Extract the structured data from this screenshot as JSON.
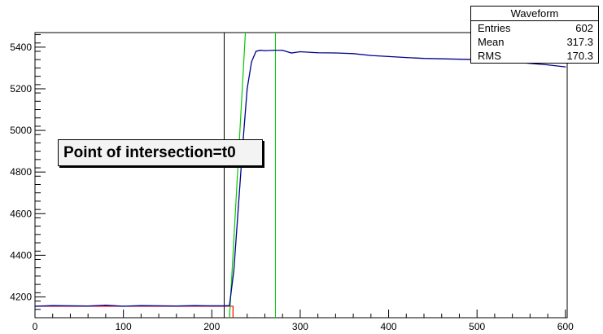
{
  "chart_data": {
    "type": "line",
    "title": "",
    "xlabel": "",
    "ylabel": "",
    "xlim": [
      0,
      602
    ],
    "ylim": [
      4100,
      5470
    ],
    "xticks": [
      0,
      100,
      200,
      300,
      400,
      500,
      600
    ],
    "yticks": [
      4200,
      4400,
      4600,
      4800,
      5000,
      5200,
      5400
    ],
    "grid": false,
    "waveform": {
      "x": [
        0,
        20,
        40,
        60,
        80,
        100,
        120,
        140,
        160,
        180,
        200,
        214,
        220,
        225,
        230,
        235,
        240,
        245,
        250,
        255,
        260,
        270,
        280,
        290,
        300,
        320,
        340,
        360,
        380,
        400,
        420,
        440,
        460,
        480,
        500,
        520,
        540,
        560,
        580,
        600
      ],
      "y": [
        4155,
        4158,
        4157,
        4156,
        4160,
        4155,
        4158,
        4157,
        4156,
        4158,
        4157,
        4157,
        4158,
        4330,
        4630,
        4930,
        5200,
        5330,
        5380,
        5385,
        5383,
        5385,
        5385,
        5372,
        5378,
        5373,
        5372,
        5369,
        5360,
        5355,
        5350,
        5346,
        5344,
        5342,
        5340,
        5336,
        5330,
        5322,
        5315,
        5305
      ],
      "color": "#00008b"
    },
    "baseline": {
      "x": [
        0,
        224
      ],
      "y": 4155,
      "color": "#ff0000"
    },
    "baseline_drop_x": 224,
    "rise_fit": {
      "x": [
        220,
        238
      ],
      "y": [
        4100,
        5470
      ],
      "color": "#00cc00"
    },
    "vertical_markers": [
      {
        "x": 214,
        "color": "#000000"
      },
      {
        "x": 272,
        "color": "#00cc00"
      }
    ],
    "stats_box": {
      "title": "Waveform",
      "entries": {
        "label": "Entries",
        "value": "602"
      },
      "mean": {
        "label": "Mean",
        "value": "317.3"
      },
      "rms": {
        "label": "RMS",
        "value": "170.3"
      }
    },
    "annotation": "Point of intersection=t0"
  }
}
